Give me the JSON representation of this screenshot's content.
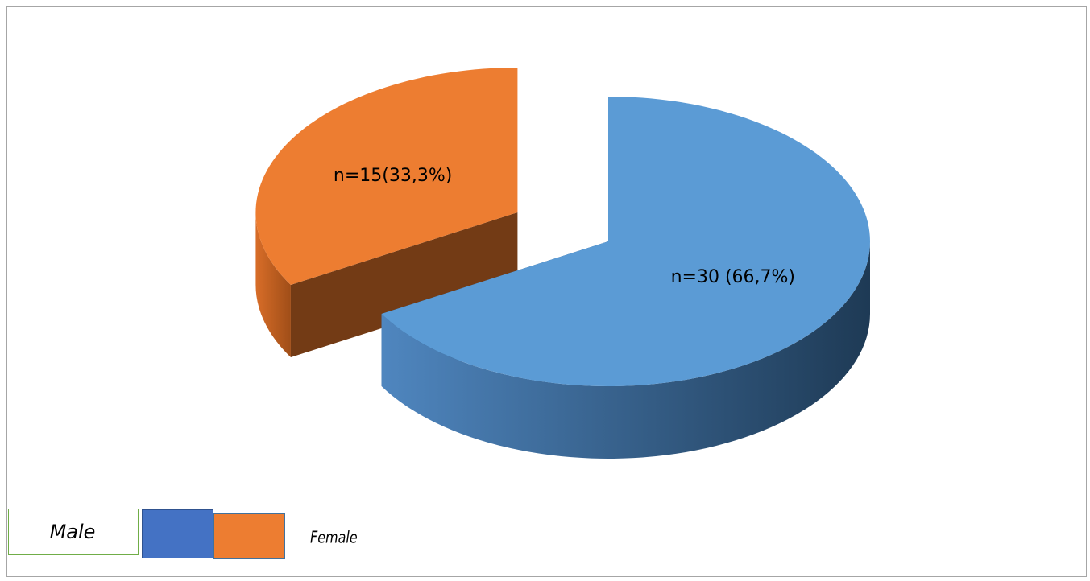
{
  "chart_data": {
    "type": "pie3d",
    "categories": [
      "Male",
      "Female"
    ],
    "values": [
      30,
      15
    ],
    "value_labels": [
      "n=30 (66,7%)",
      "n=15(33,3%)"
    ],
    "colors": [
      "#5b9bd5",
      "#ed7d31"
    ],
    "legend_colors": [
      "#4472c4",
      "#ed7d31"
    ]
  }
}
